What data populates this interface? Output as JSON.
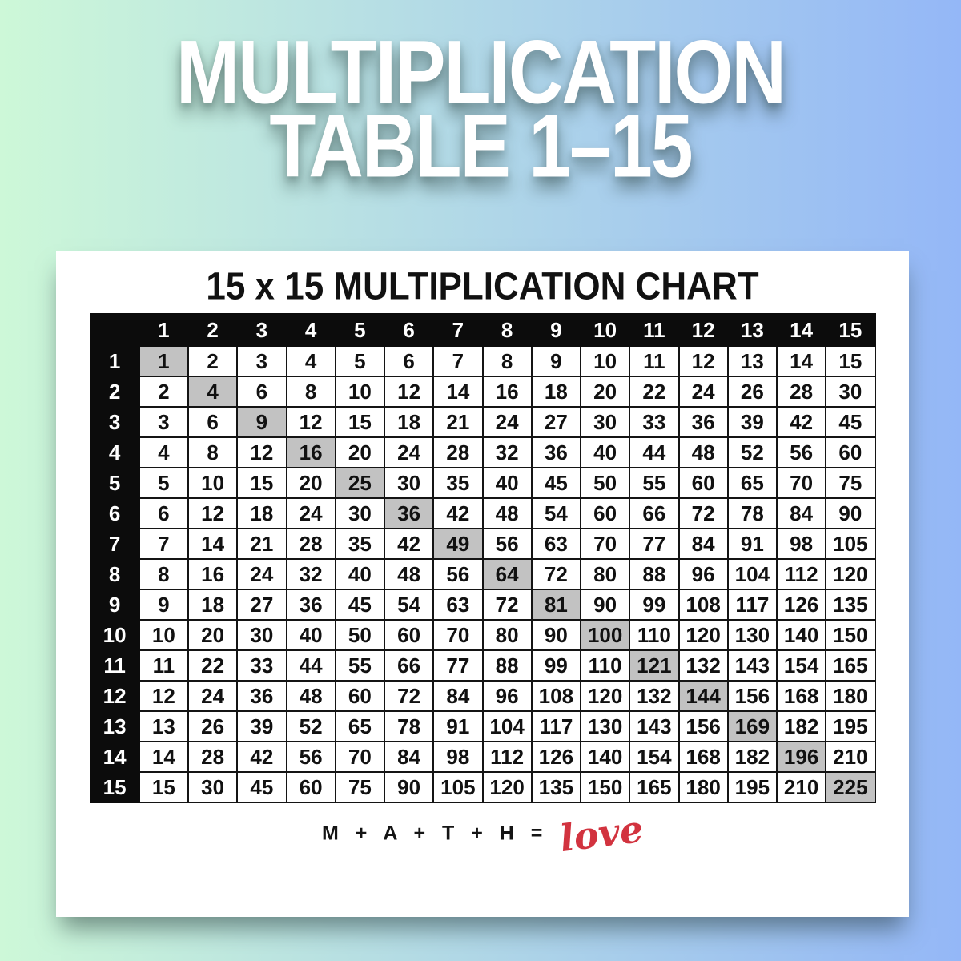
{
  "title": {
    "line1": "MULTIPLICATION",
    "line2": "TABLE 1–15"
  },
  "card": {
    "chart_title": "15 x 15 MULTIPLICATION CHART"
  },
  "footer": {
    "equation": "M + A + T + H =",
    "love": "love"
  },
  "colors": {
    "bg_left": "#cdf8d8",
    "bg_right": "#94b7f7",
    "header_bg": "#0c0c0c",
    "diagonal_highlight": "#c2c2c2",
    "love_red": "#d2333f",
    "card_bg": "#ffffff"
  },
  "chart_data": {
    "type": "table",
    "title": "15 x 15 MULTIPLICATION CHART",
    "col_headers": [
      1,
      2,
      3,
      4,
      5,
      6,
      7,
      8,
      9,
      10,
      11,
      12,
      13,
      14,
      15
    ],
    "row_headers": [
      1,
      2,
      3,
      4,
      5,
      6,
      7,
      8,
      9,
      10,
      11,
      12,
      13,
      14,
      15
    ],
    "rows": [
      [
        1,
        2,
        3,
        4,
        5,
        6,
        7,
        8,
        9,
        10,
        11,
        12,
        13,
        14,
        15
      ],
      [
        2,
        4,
        6,
        8,
        10,
        12,
        14,
        16,
        18,
        20,
        22,
        24,
        26,
        28,
        30
      ],
      [
        3,
        6,
        9,
        12,
        15,
        18,
        21,
        24,
        27,
        30,
        33,
        36,
        39,
        42,
        45
      ],
      [
        4,
        8,
        12,
        16,
        20,
        24,
        28,
        32,
        36,
        40,
        44,
        48,
        52,
        56,
        60
      ],
      [
        5,
        10,
        15,
        20,
        25,
        30,
        35,
        40,
        45,
        50,
        55,
        60,
        65,
        70,
        75
      ],
      [
        6,
        12,
        18,
        24,
        30,
        36,
        42,
        48,
        54,
        60,
        66,
        72,
        78,
        84,
        90
      ],
      [
        7,
        14,
        21,
        28,
        35,
        42,
        49,
        56,
        63,
        70,
        77,
        84,
        91,
        98,
        105
      ],
      [
        8,
        16,
        24,
        32,
        40,
        48,
        56,
        64,
        72,
        80,
        88,
        96,
        104,
        112,
        120
      ],
      [
        9,
        18,
        27,
        36,
        45,
        54,
        63,
        72,
        81,
        90,
        99,
        108,
        117,
        126,
        135
      ],
      [
        10,
        20,
        30,
        40,
        50,
        60,
        70,
        80,
        90,
        100,
        110,
        120,
        130,
        140,
        150
      ],
      [
        11,
        22,
        33,
        44,
        55,
        66,
        77,
        88,
        99,
        110,
        121,
        132,
        143,
        154,
        165
      ],
      [
        12,
        24,
        36,
        48,
        60,
        72,
        84,
        96,
        108,
        120,
        132,
        144,
        156,
        168,
        180
      ],
      [
        13,
        26,
        39,
        52,
        65,
        78,
        91,
        104,
        117,
        130,
        143,
        156,
        169,
        182,
        195
      ],
      [
        14,
        28,
        42,
        56,
        70,
        84,
        98,
        112,
        126,
        140,
        154,
        168,
        182,
        196,
        210
      ],
      [
        15,
        30,
        45,
        60,
        75,
        90,
        105,
        120,
        135,
        150,
        165,
        180,
        195,
        210,
        225
      ]
    ],
    "highlight_rule": "diagonal perfect-square cells shaded gray"
  }
}
